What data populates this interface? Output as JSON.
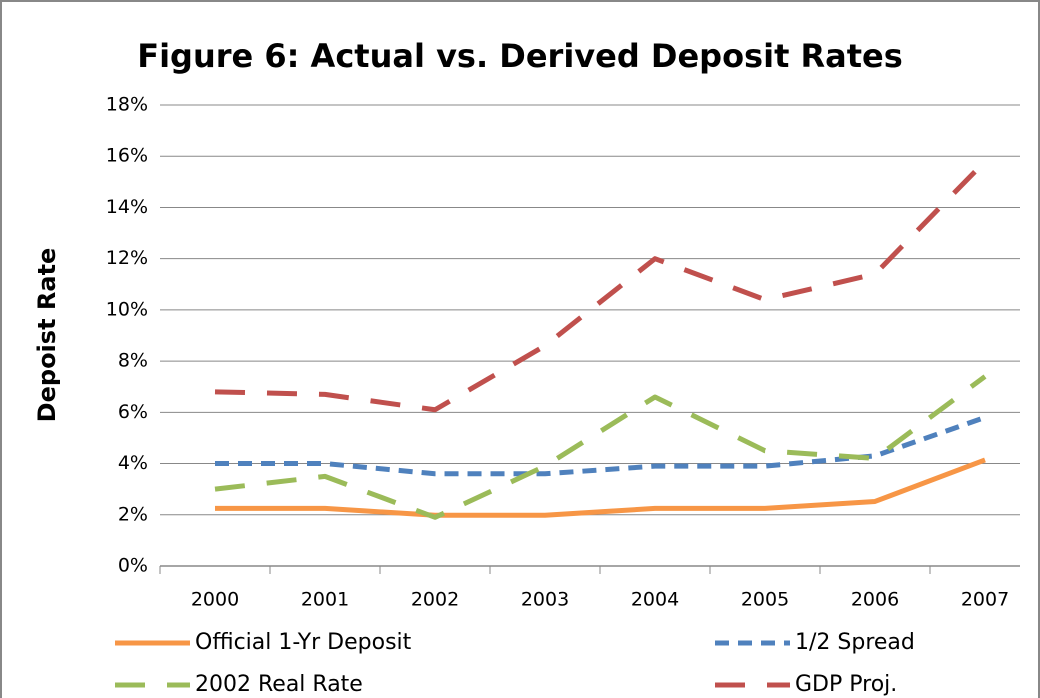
{
  "chart_data": {
    "type": "line",
    "title": "Figure 6: Actual vs. Derived Deposit Rates",
    "y_label": "Depoist Rate",
    "categories": [
      "2000",
      "2001",
      "2002",
      "2003",
      "2004",
      "2005",
      "2006",
      "2007"
    ],
    "series": [
      {
        "name": "Official 1-Yr Deposit",
        "color": "#f79646",
        "dash": "solid",
        "values": [
          2.25,
          2.25,
          1.98,
          1.98,
          2.25,
          2.25,
          2.52,
          4.14
        ]
      },
      {
        "name": "1/2 Spread",
        "color": "#4f81bd",
        "dash": "short",
        "values": [
          4.0,
          4.0,
          3.6,
          3.6,
          3.9,
          3.9,
          4.3,
          5.8
        ]
      },
      {
        "name": "2002 Real Rate",
        "color": "#9bbb59",
        "dash": "long",
        "values": [
          3.0,
          3.5,
          1.9,
          3.9,
          6.6,
          4.5,
          4.2,
          7.4
        ]
      },
      {
        "name": "GDP Proj.",
        "color": "#c0504d",
        "dash": "long",
        "values": [
          6.8,
          6.7,
          6.1,
          8.6,
          12.0,
          10.4,
          11.4,
          15.8
        ]
      }
    ],
    "ylim": [
      0,
      18
    ],
    "yticks": [
      {
        "value": 0,
        "label": "0%"
      },
      {
        "value": 2,
        "label": "2%"
      },
      {
        "value": 4,
        "label": "4%"
      },
      {
        "value": 6,
        "label": "6%"
      },
      {
        "value": 8,
        "label": "8%"
      },
      {
        "value": 10,
        "label": "10%"
      },
      {
        "value": 12,
        "label": "12%"
      },
      {
        "value": 14,
        "label": "14%"
      },
      {
        "value": 16,
        "label": "16%"
      },
      {
        "value": 18,
        "label": "18%"
      }
    ],
    "grid": true
  }
}
